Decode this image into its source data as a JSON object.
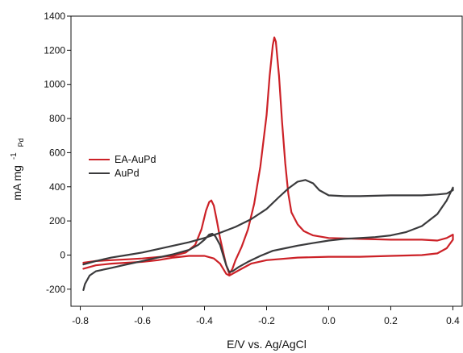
{
  "chart_data": {
    "type": "line",
    "title": "",
    "xlabel": "E/V vs. Ag/AgCl",
    "ylabel": {
      "main": "mA mg",
      "superscript": "-1",
      "subscript": "Pd"
    },
    "xlim": [
      -0.83,
      0.43
    ],
    "ylim": [
      -300,
      1400
    ],
    "xticks": [
      -0.8,
      -0.6,
      -0.4,
      -0.2,
      0.0,
      0.2,
      0.4
    ],
    "xtick_labels": [
      "-0.8",
      "-0.6",
      "-0.4",
      "-0.2",
      "0.0",
      "0.2",
      "0.4"
    ],
    "yticks": [
      -200,
      0,
      200,
      400,
      600,
      800,
      1000,
      1200,
      1400
    ],
    "ytick_labels": [
      "-200",
      "0",
      "200",
      "400",
      "600",
      "800",
      "1000",
      "1200",
      "1400"
    ],
    "grid": false,
    "legend_position": "middle-left",
    "series": [
      {
        "name": "EA-AuPd",
        "color": "#cc2127",
        "points": [
          [
            -0.79,
            -45
          ],
          [
            -0.75,
            -35
          ],
          [
            -0.7,
            -30
          ],
          [
            -0.65,
            -25
          ],
          [
            -0.6,
            -20
          ],
          [
            -0.55,
            -12
          ],
          [
            -0.5,
            -5
          ],
          [
            -0.46,
            15
          ],
          [
            -0.43,
            60
          ],
          [
            -0.41,
            150
          ],
          [
            -0.395,
            260
          ],
          [
            -0.385,
            310
          ],
          [
            -0.378,
            320
          ],
          [
            -0.37,
            290
          ],
          [
            -0.36,
            200
          ],
          [
            -0.35,
            100
          ],
          [
            -0.34,
            20
          ],
          [
            -0.33,
            -60
          ],
          [
            -0.32,
            -110
          ],
          [
            -0.31,
            -80
          ],
          [
            -0.3,
            -30
          ],
          [
            -0.28,
            50
          ],
          [
            -0.26,
            150
          ],
          [
            -0.24,
            300
          ],
          [
            -0.22,
            520
          ],
          [
            -0.2,
            820
          ],
          [
            -0.19,
            1050
          ],
          [
            -0.18,
            1230
          ],
          [
            -0.175,
            1275
          ],
          [
            -0.17,
            1250
          ],
          [
            -0.16,
            1050
          ],
          [
            -0.15,
            780
          ],
          [
            -0.14,
            540
          ],
          [
            -0.13,
            360
          ],
          [
            -0.12,
            250
          ],
          [
            -0.1,
            180
          ],
          [
            -0.08,
            140
          ],
          [
            -0.05,
            115
          ],
          [
            0.0,
            100
          ],
          [
            0.1,
            95
          ],
          [
            0.2,
            90
          ],
          [
            0.3,
            90
          ],
          [
            0.35,
            85
          ],
          [
            0.38,
            100
          ],
          [
            0.4,
            120
          ],
          [
            0.4,
            90
          ],
          [
            0.38,
            40
          ],
          [
            0.35,
            10
          ],
          [
            0.3,
            0
          ],
          [
            0.2,
            -5
          ],
          [
            0.1,
            -10
          ],
          [
            0.0,
            -10
          ],
          [
            -0.1,
            -15
          ],
          [
            -0.2,
            -30
          ],
          [
            -0.25,
            -50
          ],
          [
            -0.28,
            -80
          ],
          [
            -0.3,
            -100
          ],
          [
            -0.32,
            -120
          ],
          [
            -0.33,
            -110
          ],
          [
            -0.35,
            -50
          ],
          [
            -0.37,
            -20
          ],
          [
            -0.4,
            -5
          ],
          [
            -0.45,
            -5
          ],
          [
            -0.5,
            -15
          ],
          [
            -0.55,
            -30
          ],
          [
            -0.6,
            -40
          ],
          [
            -0.65,
            -45
          ],
          [
            -0.7,
            -50
          ],
          [
            -0.75,
            -60
          ],
          [
            -0.79,
            -80
          ]
        ]
      },
      {
        "name": "AuPd",
        "color": "#3a3a3c",
        "points": [
          [
            -0.79,
            -205
          ],
          [
            -0.785,
            -170
          ],
          [
            -0.77,
            -120
          ],
          [
            -0.75,
            -95
          ],
          [
            -0.7,
            -75
          ],
          [
            -0.65,
            -55
          ],
          [
            -0.6,
            -35
          ],
          [
            -0.55,
            -15
          ],
          [
            -0.5,
            5
          ],
          [
            -0.45,
            30
          ],
          [
            -0.42,
            60
          ],
          [
            -0.4,
            90
          ],
          [
            -0.385,
            120
          ],
          [
            -0.375,
            125
          ],
          [
            -0.365,
            110
          ],
          [
            -0.35,
            60
          ],
          [
            -0.34,
            0
          ],
          [
            -0.33,
            -60
          ],
          [
            -0.32,
            -100
          ],
          [
            -0.31,
            -95
          ],
          [
            -0.29,
            -70
          ],
          [
            -0.26,
            -40
          ],
          [
            -0.22,
            -5
          ],
          [
            -0.18,
            25
          ],
          [
            -0.14,
            40
          ],
          [
            -0.1,
            55
          ],
          [
            -0.05,
            70
          ],
          [
            0.0,
            85
          ],
          [
            0.05,
            95
          ],
          [
            0.1,
            100
          ],
          [
            0.15,
            105
          ],
          [
            0.2,
            115
          ],
          [
            0.25,
            135
          ],
          [
            0.3,
            170
          ],
          [
            0.35,
            240
          ],
          [
            0.38,
            320
          ],
          [
            0.4,
            395
          ],
          [
            0.4,
            380
          ],
          [
            0.38,
            360
          ],
          [
            0.35,
            355
          ],
          [
            0.3,
            350
          ],
          [
            0.2,
            350
          ],
          [
            0.1,
            345
          ],
          [
            0.05,
            345
          ],
          [
            0.0,
            350
          ],
          [
            -0.03,
            380
          ],
          [
            -0.05,
            420
          ],
          [
            -0.075,
            440
          ],
          [
            -0.1,
            430
          ],
          [
            -0.13,
            390
          ],
          [
            -0.16,
            340
          ],
          [
            -0.2,
            270
          ],
          [
            -0.25,
            210
          ],
          [
            -0.3,
            165
          ],
          [
            -0.35,
            130
          ],
          [
            -0.4,
            100
          ],
          [
            -0.45,
            75
          ],
          [
            -0.5,
            55
          ],
          [
            -0.55,
            35
          ],
          [
            -0.6,
            15
          ],
          [
            -0.65,
            0
          ],
          [
            -0.7,
            -15
          ],
          [
            -0.75,
            -35
          ],
          [
            -0.79,
            -55
          ]
        ]
      }
    ]
  }
}
